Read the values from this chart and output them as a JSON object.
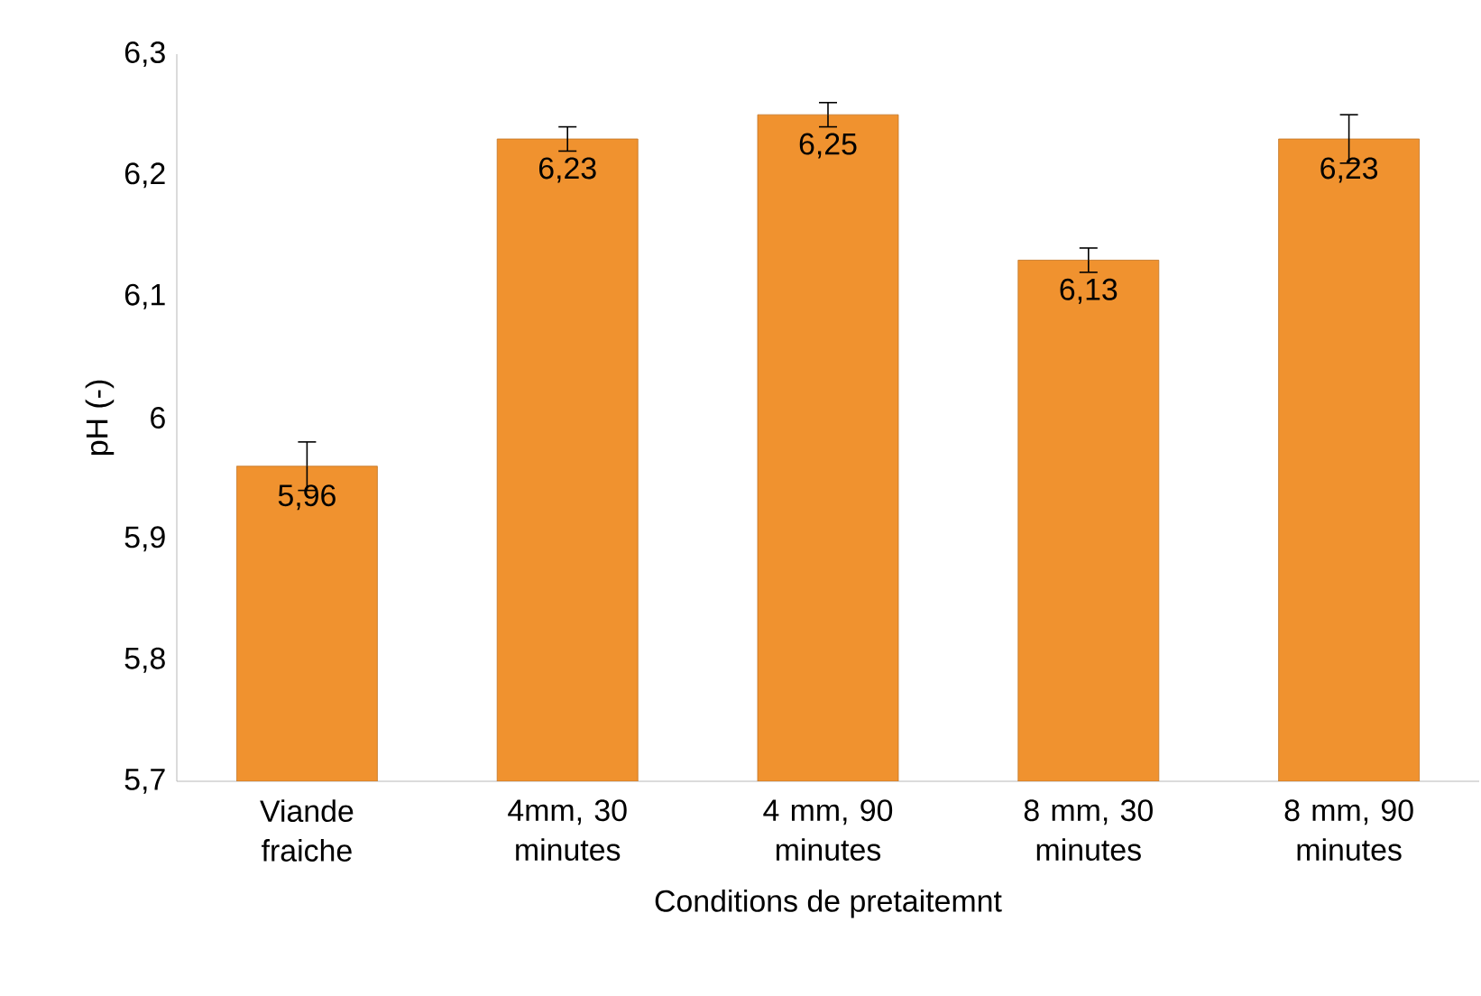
{
  "chart_data": {
    "type": "bar",
    "xlabel": "Conditions de pretaitemnt",
    "ylabel": "pH (-)",
    "categories": [
      "Viande fraiche",
      "4mm, 30 minutes",
      "4 mm, 90 minutes",
      "8 mm, 30 minutes",
      "8 mm, 90 minutes"
    ],
    "values": [
      5.96,
      6.23,
      6.25,
      6.13,
      6.23
    ],
    "errors": [
      0.02,
      0.01,
      0.01,
      0.01,
      0.02
    ],
    "value_labels": [
      "5,96",
      "6,23",
      "6,25",
      "6,13",
      "6,23"
    ],
    "color": "#f0922f",
    "ylim": [
      5.7,
      6.3
    ],
    "yticks": [
      {
        "value": 5.7,
        "label": "5,7"
      },
      {
        "value": 5.8,
        "label": "5,8"
      },
      {
        "value": 5.9,
        "label": "5,9"
      },
      {
        "value": 6,
        "label": "6"
      },
      {
        "value": 6.1,
        "label": "6,1"
      },
      {
        "value": 6.2,
        "label": "6,2"
      },
      {
        "value": 6.3,
        "label": "6,3"
      }
    ],
    "grid": false
  }
}
